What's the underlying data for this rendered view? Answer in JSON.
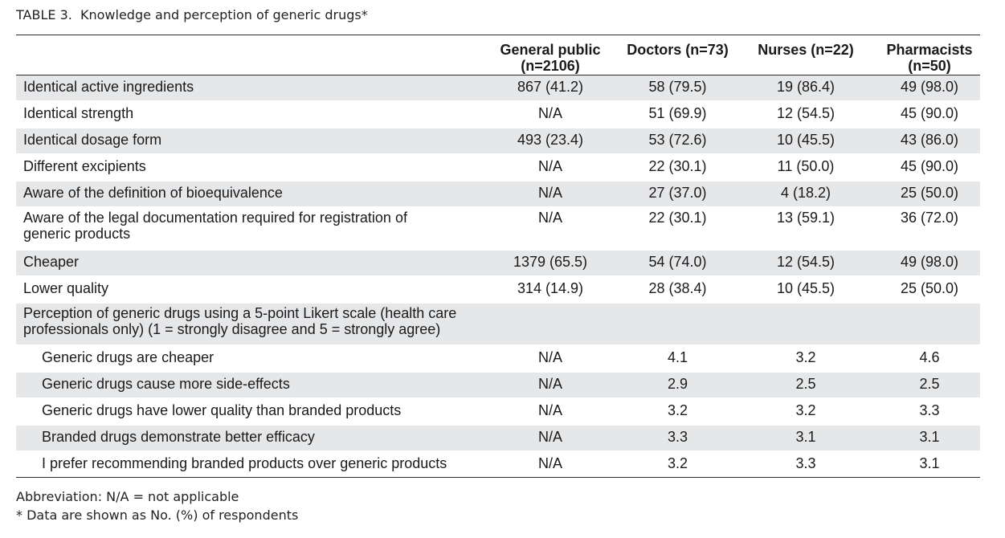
{
  "title": {
    "label": "TABLE 3.",
    "text": "Knowledge and perception of generic drugs*"
  },
  "table": {
    "headers": [
      "",
      [
        "General public",
        "(n=2106)"
      ],
      [
        "Doctors (n=73)"
      ],
      [
        "Nurses (n=22)"
      ],
      [
        "Pharmacists",
        "(n=50)"
      ]
    ],
    "rows": [
      {
        "label": "Identical active ingredients",
        "values": [
          "867 (41.2)",
          "58 (79.5)",
          "19 (86.4)",
          "49 (98.0)"
        ]
      },
      {
        "label": "Identical strength",
        "values": [
          "N/A",
          "51 (69.9)",
          "12 (54.5)",
          "45 (90.0)"
        ]
      },
      {
        "label": "Identical dosage form",
        "values": [
          "493 (23.4)",
          "53 (72.6)",
          "10 (45.5)",
          "43 (86.0)"
        ]
      },
      {
        "label": "Different excipients",
        "values": [
          "N/A",
          "22 (30.1)",
          "11 (50.0)",
          "45 (90.0)"
        ]
      },
      {
        "label": "Aware of the definition of bioequivalence",
        "values": [
          "N/A",
          "27 (37.0)",
          "4 (18.2)",
          "25 (50.0)"
        ]
      },
      {
        "label": [
          "Aware of the legal documentation required for registration of",
          "generic products"
        ],
        "values": [
          "N/A",
          "22 (30.1)",
          "13 (59.1)",
          "36 (72.0)"
        ]
      },
      {
        "label": "Cheaper",
        "values": [
          "1379 (65.5)",
          "54 (74.0)",
          "12 (54.5)",
          "49 (98.0)"
        ]
      },
      {
        "label": "Lower quality",
        "values": [
          "314 (14.9)",
          "28 (38.4)",
          "10 (45.5)",
          "25 (50.0)"
        ]
      },
      {
        "label": [
          "Perception of generic drugs using a 5-point Likert scale (health care",
          "professionals only) (1 = strongly disagree and 5 = strongly agree)"
        ],
        "values": [
          "",
          "",
          "",
          ""
        ]
      },
      {
        "label": "Generic drugs are cheaper",
        "values": [
          "N/A",
          "4.1",
          "3.2",
          "4.6"
        ],
        "indent": true
      },
      {
        "label": "Generic drugs cause more side-effects",
        "values": [
          "N/A",
          "2.9",
          "2.5",
          "2.5"
        ],
        "indent": true
      },
      {
        "label": "Generic drugs have lower quality than branded products",
        "values": [
          "N/A",
          "3.2",
          "3.2",
          "3.3"
        ],
        "indent": true
      },
      {
        "label": "Branded drugs demonstrate better efficacy",
        "values": [
          "N/A",
          "3.3",
          "3.1",
          "3.1"
        ],
        "indent": true
      },
      {
        "label": "I prefer recommending branded products over generic products",
        "values": [
          "N/A",
          "3.2",
          "3.3",
          "3.1"
        ],
        "indent": true
      }
    ]
  },
  "footnotes": [
    "Abbreviation: N/A = not applicable",
    "*   Data are shown as No. (%) of respondents"
  ],
  "colors": {
    "row_shade": "#e6e7e9",
    "rule": "#2a2a2a"
  }
}
